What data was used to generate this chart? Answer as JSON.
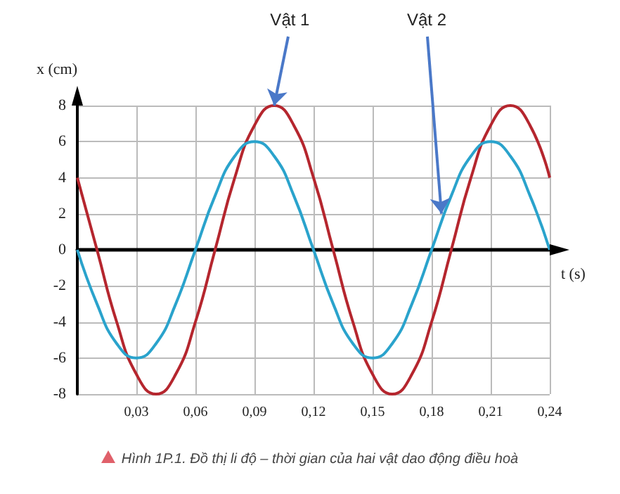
{
  "chart_data": {
    "type": "line",
    "xlabel": "t (s)",
    "ylabel": "x (cm)",
    "x": [
      0,
      0.01,
      0.02,
      0.03,
      0.04,
      0.05,
      0.06,
      0.07,
      0.08,
      0.09,
      0.1,
      0.11,
      0.12,
      0.13,
      0.14,
      0.15,
      0.16,
      0.17,
      0.18,
      0.19,
      0.2,
      0.21,
      0.22,
      0.23,
      0.24
    ],
    "series": [
      {
        "color": "#b5262e",
        "values": [
          4,
          0,
          -4,
          -6.9,
          -8,
          -6.9,
          -4,
          0,
          4,
          6.9,
          8,
          6.9,
          4,
          0,
          -4,
          -6.9,
          -8,
          -6.9,
          -4,
          0,
          4,
          6.9,
          8,
          6.9,
          4
        ]
      },
      {
        "color": "#2aa3cc",
        "values": [
          0,
          -3,
          -5.2,
          -6,
          -5.2,
          -3,
          0,
          3,
          5.2,
          6,
          5.2,
          3,
          0,
          -3,
          -5.2,
          -6,
          -5.2,
          -3,
          0,
          3,
          5.2,
          6,
          5.2,
          3,
          0
        ]
      }
    ],
    "xlim": [
      0,
      0.24
    ],
    "xticks": [
      {
        "value": 0,
        "label": null
      },
      {
        "value": 0.03,
        "label": "0,03"
      },
      {
        "value": 0.06,
        "label": "0,06"
      },
      {
        "value": 0.09,
        "label": "0,09"
      },
      {
        "value": 0.12,
        "label": "0,12"
      },
      {
        "value": 0.15,
        "label": "0,15"
      },
      {
        "value": 0.18,
        "label": "0,18"
      },
      {
        "value": 0.21,
        "label": "0,21"
      },
      {
        "value": 0.24,
        "label": "0,24"
      }
    ],
    "ylim": [
      -8,
      8
    ],
    "yticks": [
      -8,
      -6,
      -4,
      -2,
      0,
      2,
      4,
      6,
      8
    ],
    "grid": true,
    "marker": "none",
    "line_style": "solid",
    "annotations": [
      {
        "text": "Vật 1",
        "x": 0.1,
        "y": 8
      },
      {
        "text": "Vật 2",
        "x": 0.185,
        "y": 2
      },
      "Hình 1P.1. Đồ thị li độ – thời gian của hai vật dao động điều hoà"
    ]
  }
}
